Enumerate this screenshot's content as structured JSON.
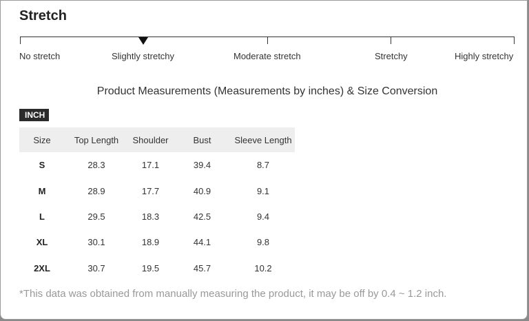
{
  "stretch": {
    "title": "Stretch",
    "levels": [
      "No stretch",
      "Slightly stretchy",
      "Moderate stretch",
      "Stretchy",
      "Highly stretchy"
    ],
    "selected_index": 1
  },
  "measurements": {
    "heading": "Product Measurements (Measurements by inches) & Size Conversion",
    "unit_label": "INCH",
    "columns": [
      "Size",
      "Top Length",
      "Shoulder",
      "Bust",
      "Sleeve Length"
    ],
    "rows": [
      [
        "S",
        "28.3",
        "17.1",
        "39.4",
        "8.7"
      ],
      [
        "M",
        "28.9",
        "17.7",
        "40.9",
        "9.1"
      ],
      [
        "L",
        "29.5",
        "18.3",
        "42.5",
        "9.4"
      ],
      [
        "XL",
        "30.1",
        "18.9",
        "44.1",
        "9.8"
      ],
      [
        "2XL",
        "30.7",
        "19.5",
        "45.7",
        "10.2"
      ]
    ],
    "note": "*This data was obtained from manually measuring the product, it may be off by 0.4 ~ 1.2 inch."
  }
}
